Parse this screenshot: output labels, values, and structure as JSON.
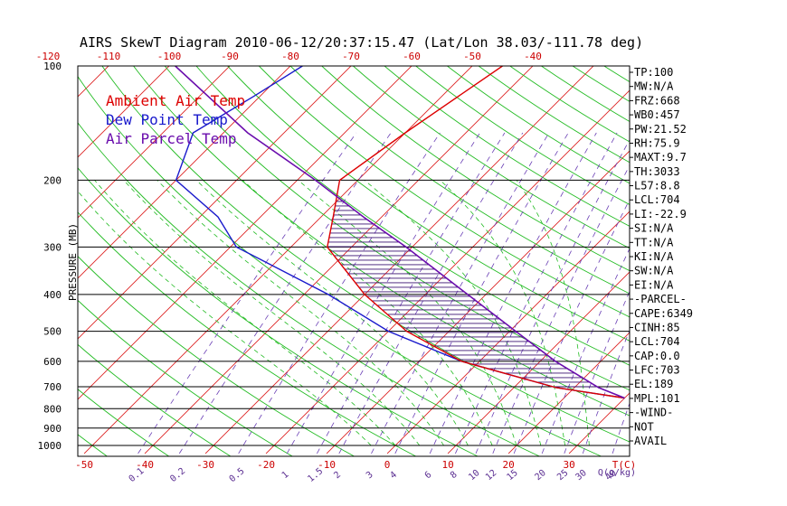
{
  "title": "AIRS SkewT Diagram 2010-06-12/20:37:15.47 (Lat/Lon 38.03/-111.78 deg)",
  "colors": {
    "ambient": "#dd0000",
    "dewpoint": "#1a1acc",
    "parcel": "#6a0dad",
    "isotherm": "#dd2222",
    "dry_adiabat": "#22bb22",
    "mixing_ratio": "#6a3fb5",
    "hatch": "#3a1070"
  },
  "chart_data": {
    "type": "line",
    "pressure_range": [
      1000,
      100
    ],
    "pressure_ticks": [
      100,
      200,
      300,
      400,
      500,
      600,
      700,
      800,
      900,
      1000
    ],
    "ylabel": "PRESSURE (MB)",
    "top_temp_ticks": [
      -120,
      -110,
      -100,
      -90,
      -80,
      -70,
      -60,
      -50,
      -40
    ],
    "bottom_temp_ticks": [
      -50,
      -40,
      -30,
      -20,
      -10,
      0,
      10,
      20,
      30
    ],
    "temp_unit_label": "T(C)",
    "mixing_ratio_labels": [
      "0.1",
      "0.2",
      "0.5",
      "1",
      "1.5",
      "2",
      "3",
      "4",
      "6",
      "8",
      "10",
      "12",
      "15",
      "20",
      "25",
      "30",
      "40"
    ],
    "mixing_ratio_unit_label": "Q(g/kg)",
    "legend": [
      {
        "label": "Ambient Air Temp",
        "color": "#dd0000"
      },
      {
        "label": "Dew Point Temp",
        "color": "#1a1acc"
      },
      {
        "label": "Air Parcel Temp",
        "color": "#6a0dad"
      }
    ],
    "series": [
      {
        "name": "Ambient Air Temp",
        "values": [
          [
            750,
            30
          ],
          [
            704,
            17
          ],
          [
            650,
            7
          ],
          [
            600,
            -3
          ],
          [
            500,
            -17
          ],
          [
            400,
            -30
          ],
          [
            300,
            -44
          ],
          [
            250,
            -48
          ],
          [
            200,
            -53
          ],
          [
            150,
            -50
          ],
          [
            100,
            -45
          ]
        ]
      },
      {
        "name": "Dew Point Temp",
        "values": [
          [
            750,
            30
          ],
          [
            704,
            17
          ],
          [
            650,
            7
          ],
          [
            600,
            -3
          ],
          [
            500,
            -20
          ],
          [
            400,
            -36
          ],
          [
            300,
            -59
          ],
          [
            250,
            -67
          ],
          [
            200,
            -80
          ],
          [
            150,
            -85
          ],
          [
            120,
            -81
          ],
          [
            100,
            -78
          ]
        ]
      },
      {
        "name": "Air Parcel Temp",
        "values": [
          [
            750,
            30
          ],
          [
            704,
            24
          ],
          [
            600,
            12.5
          ],
          [
            500,
            1
          ],
          [
            400,
            -13
          ],
          [
            300,
            -31
          ],
          [
            250,
            -43
          ],
          [
            200,
            -57
          ],
          [
            150,
            -76
          ],
          [
            100,
            -99
          ]
        ]
      }
    ]
  },
  "stats": [
    "TP:100",
    "MW:N/A",
    "FRZ:668",
    "WB0:457",
    "PW:21.52",
    "RH:75.9",
    "MAXT:9.7",
    "TH:3033",
    "L57:8.8",
    "LCL:704",
    "LI:-22.9",
    "SI:N/A",
    "TT:N/A",
    "KI:N/A",
    "SW:N/A",
    "EI:N/A",
    "-PARCEL-",
    "CAPE:6349",
    "CINH:85",
    "LCL:704",
    "CAP:0.0",
    "LFC:703",
    "EL:189",
    "MPL:101",
    "-WIND-",
    "NOT",
    "AVAIL"
  ]
}
